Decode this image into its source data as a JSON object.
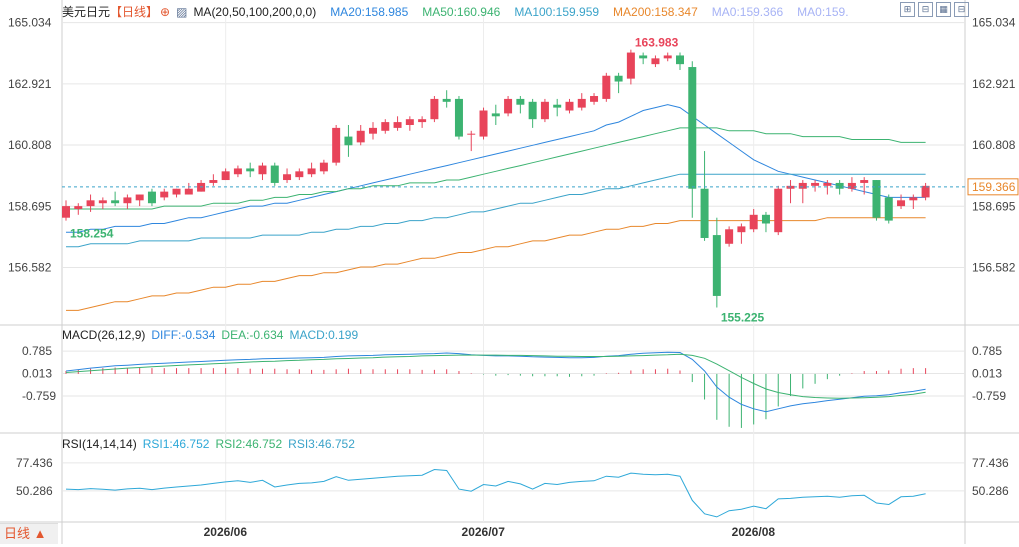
{
  "header": {
    "instrument": "美元日元",
    "period": "【日线】",
    "icon": "circle-plus-icon",
    "ma_formula": "MA(20,50,100,200,0,0)",
    "ma_values": [
      {
        "label": "MA20:158.985",
        "color": "#2e86de"
      },
      {
        "label": "MA50:160.946",
        "color": "#3cb371"
      },
      {
        "label": "MA100:159.959",
        "color": "#3ba3c9"
      },
      {
        "label": "MA200:158.347",
        "color": "#e8872b"
      },
      {
        "label": "MA0:159.366",
        "color": "#a7b3f5"
      },
      {
        "label": "MA0:159.",
        "color": "#a7b3f5"
      }
    ]
  },
  "toolbar": {
    "buttons": [
      "expand-icon",
      "indicator-icon",
      "settings-icon",
      "collapse-icon"
    ]
  },
  "current_price": "159.366",
  "period_tab": "日线 ▲",
  "macd_header": {
    "title": "MACD(26,12,9)",
    "diff": "DIFF:-0.534",
    "dea": "DEA:-0.634",
    "macd": "MACD:0.199"
  },
  "rsi_header": {
    "title": "RSI(14,14,14)",
    "rsi1": "RSI1:46.752",
    "rsi2": "RSI2:46.752",
    "rsi3": "RSI3:46.752"
  },
  "colors": {
    "up": "#e8445a",
    "down": "#3cb371",
    "ma20": "#2e86de",
    "ma50": "#3cb371",
    "ma100": "#3ba3c9",
    "ma200": "#e8872b",
    "grid": "#e6e6e6"
  },
  "chart_data": [
    {
      "type": "candlestick",
      "title": "美元日元",
      "yticks": [
        "165.034",
        "162.921",
        "160.808",
        "158.695",
        "156.582"
      ],
      "ylim": [
        154.7,
        165.4
      ],
      "max_label": "163.983",
      "min_label": "155.225",
      "first_label": "158.254",
      "xticks": [
        {
          "label": "2026/06",
          "index": 13
        },
        {
          "label": "2026/07",
          "index": 34
        },
        {
          "label": "2026/08",
          "index": 56
        }
      ],
      "candles": [
        [
          158.3,
          158.7,
          158.9,
          158.2
        ],
        [
          158.6,
          158.7,
          158.8,
          158.4
        ],
        [
          158.7,
          158.9,
          159.1,
          158.5
        ],
        [
          158.8,
          158.9,
          159.0,
          158.6
        ],
        [
          158.9,
          158.8,
          159.2,
          158.7
        ],
        [
          158.8,
          159.0,
          159.1,
          158.6
        ],
        [
          158.9,
          159.1,
          159.1,
          158.7
        ],
        [
          159.2,
          158.8,
          159.3,
          158.7
        ],
        [
          159.0,
          159.2,
          159.3,
          158.9
        ],
        [
          159.1,
          159.3,
          159.3,
          159.0
        ],
        [
          159.1,
          159.3,
          159.5,
          159.1
        ],
        [
          159.2,
          159.5,
          159.6,
          159.2
        ],
        [
          159.5,
          159.6,
          159.8,
          159.4
        ],
        [
          159.6,
          159.9,
          160.0,
          159.6
        ],
        [
          159.8,
          160.0,
          160.1,
          159.7
        ],
        [
          160.0,
          159.9,
          160.2,
          159.7
        ],
        [
          159.8,
          160.1,
          160.2,
          159.6
        ],
        [
          160.1,
          159.5,
          160.2,
          159.4
        ],
        [
          159.6,
          159.8,
          160.0,
          159.5
        ],
        [
          159.7,
          159.9,
          160.0,
          159.6
        ],
        [
          159.8,
          160.0,
          160.2,
          159.7
        ],
        [
          159.9,
          160.2,
          160.3,
          159.8
        ],
        [
          160.2,
          161.4,
          161.5,
          160.1
        ],
        [
          161.1,
          160.8,
          161.5,
          160.4
        ],
        [
          160.9,
          161.3,
          161.5,
          160.8
        ],
        [
          161.2,
          161.4,
          161.6,
          161.0
        ],
        [
          161.3,
          161.6,
          161.7,
          161.2
        ],
        [
          161.4,
          161.6,
          161.8,
          161.3
        ],
        [
          161.5,
          161.7,
          161.8,
          161.3
        ],
        [
          161.6,
          161.7,
          161.8,
          161.4
        ],
        [
          161.7,
          162.4,
          162.5,
          161.6
        ],
        [
          162.4,
          162.3,
          162.7,
          162.1
        ],
        [
          162.4,
          161.1,
          162.5,
          161.0
        ],
        [
          161.2,
          161.2,
          161.3,
          160.6
        ],
        [
          161.1,
          162.0,
          162.1,
          161.0
        ],
        [
          161.9,
          161.8,
          162.2,
          161.5
        ],
        [
          161.9,
          162.4,
          162.5,
          161.8
        ],
        [
          162.4,
          162.2,
          162.5,
          161.9
        ],
        [
          162.3,
          161.7,
          162.4,
          161.4
        ],
        [
          161.7,
          162.3,
          162.4,
          161.6
        ],
        [
          162.2,
          162.1,
          162.4,
          161.8
        ],
        [
          162.0,
          162.3,
          162.4,
          161.9
        ],
        [
          162.1,
          162.4,
          162.6,
          162.0
        ],
        [
          162.3,
          162.5,
          162.6,
          162.2
        ],
        [
          162.4,
          163.2,
          163.3,
          162.3
        ],
        [
          163.2,
          163.0,
          163.3,
          162.6
        ],
        [
          163.1,
          164.0,
          164.1,
          162.9
        ],
        [
          163.9,
          163.8,
          164.0,
          163.6
        ],
        [
          163.6,
          163.8,
          163.9,
          163.5
        ],
        [
          163.8,
          163.9,
          164.0,
          163.7
        ],
        [
          163.9,
          163.6,
          164.0,
          163.4
        ],
        [
          163.5,
          159.3,
          163.7,
          158.3
        ],
        [
          159.3,
          157.6,
          160.6,
          157.5
        ],
        [
          157.7,
          155.6,
          158.3,
          155.2
        ],
        [
          157.4,
          157.9,
          158.0,
          157.3
        ],
        [
          157.8,
          158.0,
          158.1,
          157.4
        ],
        [
          157.9,
          158.4,
          158.6,
          157.8
        ],
        [
          158.4,
          158.1,
          158.5,
          157.8
        ],
        [
          157.8,
          159.3,
          159.4,
          157.7
        ],
        [
          159.3,
          159.4,
          159.6,
          158.8
        ],
        [
          159.3,
          159.5,
          159.6,
          158.8
        ],
        [
          159.4,
          159.5,
          159.6,
          159.2
        ],
        [
          159.4,
          159.5,
          159.6,
          159.1
        ],
        [
          159.5,
          159.3,
          159.6,
          159.1
        ],
        [
          159.3,
          159.5,
          159.7,
          159.2
        ],
        [
          159.5,
          159.6,
          159.7,
          159.1
        ],
        [
          159.6,
          158.3,
          159.6,
          158.2
        ],
        [
          159.0,
          158.2,
          159.1,
          158.1
        ],
        [
          158.7,
          158.9,
          159.1,
          158.6
        ],
        [
          158.9,
          159.0,
          159.1,
          158.6
        ],
        [
          159.0,
          159.4,
          159.5,
          158.9
        ]
      ],
      "series": [
        {
          "name": "MA20",
          "values": [
            157.8,
            157.8,
            157.9,
            157.9,
            158.0,
            158.0,
            158.0,
            158.1,
            158.1,
            158.2,
            158.3,
            158.3,
            158.4,
            158.5,
            158.6,
            158.7,
            158.7,
            158.8,
            158.8,
            158.9,
            159.0,
            159.1,
            159.2,
            159.3,
            159.4,
            159.5,
            159.6,
            159.7,
            159.8,
            159.9,
            160.0,
            160.1,
            160.2,
            160.3,
            160.4,
            160.5,
            160.6,
            160.7,
            160.8,
            160.9,
            161.0,
            161.1,
            161.2,
            161.3,
            161.5,
            161.6,
            161.8,
            162.0,
            162.1,
            162.2,
            162.1,
            161.8,
            161.5,
            161.2,
            160.9,
            160.6,
            160.3,
            160.1,
            159.9,
            159.8,
            159.7,
            159.6,
            159.5,
            159.4,
            159.3,
            159.2,
            159.1,
            159.0,
            159.0,
            159.0,
            159.0
          ]
        },
        {
          "name": "MA50",
          "values": [
            158.6,
            158.6,
            158.6,
            158.6,
            158.6,
            158.6,
            158.6,
            158.6,
            158.7,
            158.7,
            158.7,
            158.7,
            158.8,
            158.8,
            158.8,
            158.9,
            158.9,
            159.0,
            159.0,
            159.1,
            159.1,
            159.2,
            159.2,
            159.3,
            159.3,
            159.4,
            159.4,
            159.4,
            159.5,
            159.5,
            159.5,
            159.6,
            159.6,
            159.7,
            159.8,
            159.9,
            160.0,
            160.1,
            160.2,
            160.3,
            160.4,
            160.5,
            160.6,
            160.7,
            160.8,
            160.9,
            161.0,
            161.1,
            161.2,
            161.3,
            161.4,
            161.4,
            161.4,
            161.4,
            161.3,
            161.3,
            161.3,
            161.2,
            161.2,
            161.2,
            161.1,
            161.1,
            161.1,
            161.1,
            161.0,
            161.0,
            161.0,
            161.0,
            160.9,
            160.9,
            160.9
          ]
        },
        {
          "name": "MA100",
          "values": [
            157.3,
            157.3,
            157.4,
            157.4,
            157.4,
            157.4,
            157.5,
            157.5,
            157.5,
            157.5,
            157.5,
            157.6,
            157.6,
            157.6,
            157.6,
            157.6,
            157.7,
            157.7,
            157.7,
            157.7,
            157.8,
            157.8,
            157.9,
            157.9,
            158.0,
            158.0,
            158.1,
            158.1,
            158.2,
            158.2,
            158.3,
            158.3,
            158.4,
            158.5,
            158.5,
            158.6,
            158.7,
            158.8,
            158.8,
            158.9,
            159.0,
            159.1,
            159.1,
            159.2,
            159.3,
            159.3,
            159.4,
            159.5,
            159.6,
            159.7,
            159.8,
            159.8,
            159.8,
            159.8,
            159.8,
            159.8,
            159.8,
            159.8,
            159.8,
            159.8,
            159.8,
            159.8,
            159.8,
            159.8,
            159.8,
            159.8,
            159.8,
            159.8,
            159.8,
            159.8,
            159.8
          ]
        },
        {
          "name": "MA200",
          "values": [
            155.1,
            155.1,
            155.2,
            155.3,
            155.4,
            155.4,
            155.5,
            155.6,
            155.6,
            155.7,
            155.7,
            155.8,
            155.9,
            155.9,
            156.0,
            156.0,
            156.1,
            156.1,
            156.2,
            156.3,
            156.3,
            156.4,
            156.4,
            156.5,
            156.6,
            156.6,
            156.7,
            156.7,
            156.8,
            156.9,
            156.9,
            157.0,
            157.1,
            157.1,
            157.2,
            157.3,
            157.3,
            157.4,
            157.5,
            157.5,
            157.6,
            157.7,
            157.7,
            157.8,
            157.9,
            157.9,
            158.0,
            158.0,
            158.1,
            158.1,
            158.2,
            158.2,
            158.2,
            158.2,
            158.2,
            158.2,
            158.2,
            158.2,
            158.2,
            158.2,
            158.2,
            158.2,
            158.3,
            158.3,
            158.3,
            158.3,
            158.3,
            158.3,
            158.3,
            158.3,
            158.3
          ]
        }
      ]
    },
    {
      "type": "line",
      "title": "MACD(26,12,9)",
      "yticks": [
        "0.785",
        "0.013",
        "-0.759"
      ],
      "ylim": [
        -2.0,
        1.1
      ],
      "series": [
        {
          "name": "DIFF",
          "values": [
            0.1,
            0.15,
            0.2,
            0.24,
            0.28,
            0.3,
            0.33,
            0.35,
            0.37,
            0.39,
            0.41,
            0.43,
            0.45,
            0.47,
            0.49,
            0.5,
            0.52,
            0.53,
            0.54,
            0.55,
            0.56,
            0.57,
            0.6,
            0.62,
            0.63,
            0.64,
            0.66,
            0.67,
            0.68,
            0.69,
            0.7,
            0.72,
            0.7,
            0.66,
            0.64,
            0.62,
            0.62,
            0.61,
            0.59,
            0.58,
            0.57,
            0.56,
            0.56,
            0.57,
            0.61,
            0.63,
            0.68,
            0.71,
            0.73,
            0.75,
            0.74,
            0.5,
            0.1,
            -0.45,
            -0.8,
            -1.05,
            -1.2,
            -1.3,
            -1.2,
            -1.1,
            -1.03,
            -0.98,
            -0.92,
            -0.87,
            -0.82,
            -0.77,
            -0.75,
            -0.72,
            -0.65,
            -0.6,
            -0.53
          ]
        },
        {
          "name": "DEA",
          "values": [
            0.05,
            0.08,
            0.11,
            0.14,
            0.17,
            0.2,
            0.22,
            0.25,
            0.27,
            0.29,
            0.31,
            0.33,
            0.35,
            0.37,
            0.39,
            0.41,
            0.43,
            0.44,
            0.46,
            0.47,
            0.49,
            0.5,
            0.52,
            0.53,
            0.55,
            0.56,
            0.58,
            0.59,
            0.6,
            0.62,
            0.63,
            0.64,
            0.65,
            0.65,
            0.65,
            0.65,
            0.64,
            0.64,
            0.63,
            0.62,
            0.61,
            0.61,
            0.6,
            0.6,
            0.6,
            0.61,
            0.62,
            0.63,
            0.65,
            0.66,
            0.68,
            0.64,
            0.54,
            0.34,
            0.11,
            -0.12,
            -0.33,
            -0.52,
            -0.64,
            -0.72,
            -0.78,
            -0.81,
            -0.83,
            -0.84,
            -0.83,
            -0.82,
            -0.8,
            -0.78,
            -0.74,
            -0.7,
            -0.63
          ]
        },
        {
          "name": "MACD",
          "values": [
            0.1,
            0.14,
            0.18,
            0.2,
            0.22,
            0.2,
            0.22,
            0.2,
            0.2,
            0.2,
            0.2,
            0.2,
            0.2,
            0.2,
            0.2,
            0.18,
            0.18,
            0.18,
            0.16,
            0.16,
            0.14,
            0.14,
            0.16,
            0.18,
            0.16,
            0.16,
            0.16,
            0.16,
            0.16,
            0.14,
            0.14,
            0.16,
            0.1,
            0.02,
            -0.02,
            -0.06,
            -0.04,
            -0.06,
            -0.08,
            -0.08,
            -0.08,
            -0.1,
            -0.08,
            -0.06,
            0.02,
            0.04,
            0.12,
            0.16,
            0.16,
            0.18,
            0.12,
            -0.28,
            -0.88,
            -1.58,
            -1.82,
            -1.86,
            -1.74,
            -1.56,
            -1.12,
            -0.76,
            -0.5,
            -0.34,
            -0.18,
            -0.06,
            0.02,
            0.1,
            0.1,
            0.12,
            0.18,
            0.2,
            0.2
          ]
        }
      ]
    },
    {
      "type": "line",
      "title": "RSI(14,14,14)",
      "yticks": [
        "77.436",
        "50.286"
      ],
      "ylim": [
        22.0,
        88.0
      ],
      "series": [
        {
          "name": "RSI1",
          "values": [
            52.0,
            51.5,
            52.5,
            51.8,
            51.0,
            52.2,
            52.8,
            51.5,
            53.0,
            54.0,
            55.0,
            56.0,
            57.5,
            59.0,
            60.0,
            58.5,
            60.5,
            54.0,
            56.0,
            57.5,
            58.0,
            59.5,
            64.0,
            60.5,
            61.5,
            62.5,
            63.5,
            64.5,
            65.0,
            65.5,
            71.0,
            70.0,
            52.0,
            50.0,
            56.5,
            55.0,
            59.5,
            57.0,
            52.0,
            57.5,
            56.5,
            58.5,
            59.5,
            60.0,
            64.5,
            63.5,
            67.5,
            66.5,
            66.0,
            66.5,
            64.5,
            41.0,
            28.0,
            25.0,
            31.0,
            32.5,
            35.5,
            33.0,
            42.5,
            43.0,
            44.0,
            44.5,
            45.0,
            44.0,
            45.5,
            46.0,
            38.5,
            37.0,
            44.5,
            45.0,
            47.5
          ]
        }
      ]
    }
  ]
}
